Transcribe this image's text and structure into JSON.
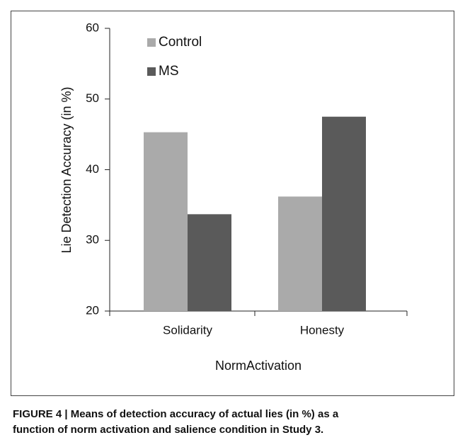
{
  "chart_data": {
    "type": "bar",
    "y_label": "Lie Detection Accuracy (in %)",
    "x_label": "NormActivation",
    "categories": [
      "Solidarity",
      "Honesty"
    ],
    "series": [
      {
        "name": "Control",
        "color": "#aaaaaa",
        "values": [
          45.3,
          36.2
        ]
      },
      {
        "name": "MS",
        "color": "#5a5a5a",
        "values": [
          33.7,
          47.5
        ]
      }
    ],
    "ylim": [
      20,
      60
    ],
    "yticks": [
      20,
      30,
      40,
      50,
      60
    ],
    "legend": "upper left",
    "caption": [
      "FIGURE 4 | Means of detection accuracy of actual lies (in %) as a",
      "function of norm activation and salience condition in Study 3."
    ]
  }
}
